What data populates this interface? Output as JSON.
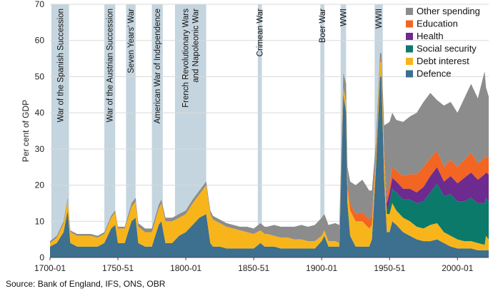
{
  "chart_data": {
    "type": "area",
    "stacked": true,
    "ylabel": "Per cent of GDP",
    "ylim": [
      0,
      70
    ],
    "yticks": [
      0,
      10,
      20,
      30,
      40,
      50,
      60,
      70
    ],
    "xlim": [
      1700,
      2023
    ],
    "xticks": [
      {
        "year": 1700,
        "label": "1700-01"
      },
      {
        "year": 1750,
        "label": "1750-51"
      },
      {
        "year": 1800,
        "label": "1800-01"
      },
      {
        "year": 1850,
        "label": "1850-51"
      },
      {
        "year": 1900,
        "label": "1900-01"
      },
      {
        "year": 1950,
        "label": "1950-51"
      },
      {
        "year": 2000,
        "label": "2000-01"
      }
    ],
    "grid": "horizontal",
    "legend_position": "top-right",
    "source": "Source: Bank of England, IFS, ONS, OBR",
    "wars": [
      {
        "label": "War of the Spanish Succession",
        "start": 1701,
        "end": 1714
      },
      {
        "label": "War of the Austrian Succession",
        "start": 1740,
        "end": 1748
      },
      {
        "label": "Seven Years' War",
        "start": 1756,
        "end": 1763
      },
      {
        "label": "American War of Independence",
        "start": 1775,
        "end": 1783
      },
      {
        "label": "French Revolutionary Wars",
        "label2": "and Napoleonic War",
        "start": 1792,
        "end": 1815
      },
      {
        "label": "Crimean War",
        "start": 1853,
        "end": 1856
      },
      {
        "label": "Boer War",
        "start": 1899,
        "end": 1902
      },
      {
        "label": "WWI",
        "start": 1914,
        "end": 1918
      },
      {
        "label": "WWII",
        "start": 1939,
        "end": 1945
      }
    ],
    "years": [
      1700,
      1705,
      1710,
      1713,
      1715,
      1720,
      1725,
      1730,
      1735,
      1740,
      1745,
      1748,
      1750,
      1755,
      1760,
      1763,
      1765,
      1770,
      1775,
      1780,
      1782,
      1785,
      1790,
      1795,
      1800,
      1805,
      1810,
      1815,
      1818,
      1820,
      1825,
      1830,
      1835,
      1840,
      1845,
      1850,
      1855,
      1858,
      1860,
      1865,
      1870,
      1875,
      1880,
      1885,
      1890,
      1895,
      1900,
      1902,
      1905,
      1910,
      1913,
      1916,
      1918,
      1919,
      1921,
      1925,
      1930,
      1935,
      1937,
      1940,
      1943,
      1944,
      1946,
      1948,
      1950,
      1952,
      1955,
      1960,
      1965,
      1970,
      1975,
      1980,
      1985,
      1990,
      1995,
      2000,
      2005,
      2010,
      2015,
      2020,
      2021,
      2023
    ],
    "series": [
      {
        "name": "Defence",
        "color": "#3d6f8e",
        "values": [
          3,
          4,
          7,
          13,
          4,
          3,
          3,
          3,
          3,
          4,
          8,
          9,
          4,
          4,
          10,
          11,
          4,
          3,
          3,
          9,
          10,
          4,
          4,
          6,
          7,
          9,
          11,
          12,
          4,
          3,
          3,
          2.5,
          2.5,
          2.5,
          2.5,
          2.5,
          4,
          3,
          3,
          3,
          2.5,
          2.5,
          2.5,
          2.5,
          2.5,
          2.5,
          4.5,
          6,
          3,
          3,
          3,
          45,
          40,
          15,
          6,
          3,
          3,
          3,
          5,
          25,
          50,
          50,
          22,
          7,
          7,
          10,
          9,
          7,
          6,
          5,
          4.5,
          4.5,
          5,
          4,
          3,
          2.5,
          2.5,
          2.5,
          2,
          2,
          2,
          2
        ]
      },
      {
        "name": "Debt interest",
        "color": "#f7b51b",
        "values": [
          1,
          1.5,
          2.5,
          3,
          3,
          3,
          3,
          3,
          2.5,
          2.5,
          3,
          3.5,
          4,
          4,
          4,
          4.5,
          4.5,
          4,
          4,
          4.5,
          5,
          6,
          6,
          5,
          5,
          6,
          6.5,
          8,
          8,
          7.5,
          6.5,
          6,
          5.5,
          5,
          4.5,
          4,
          3.5,
          3.5,
          3.5,
          3,
          3,
          3,
          2.5,
          2.5,
          2,
          2,
          1.5,
          1.5,
          1.5,
          1.5,
          1,
          2,
          3,
          4,
          7,
          7,
          7,
          5,
          4,
          3,
          4,
          4,
          5,
          5,
          5,
          5,
          4,
          4,
          4,
          3.5,
          3.5,
          4.5,
          4.5,
          3,
          3,
          2.5,
          2,
          2,
          2,
          1.5,
          4,
          3
        ]
      },
      {
        "name": "Social security",
        "color": "#0c7a6a",
        "values": [
          0,
          0,
          0,
          0,
          0,
          0,
          0,
          0,
          0,
          0,
          0,
          0,
          0,
          0,
          0,
          0,
          0,
          0,
          0,
          0,
          0,
          0,
          0,
          0,
          0,
          0,
          0,
          0,
          0,
          0,
          0,
          0,
          0,
          0,
          0,
          0,
          0,
          0,
          0,
          0,
          0,
          0,
          0,
          0,
          0,
          0,
          0,
          0,
          0,
          0,
          0,
          0,
          0,
          0,
          0,
          0,
          0,
          0,
          0,
          0,
          0,
          0,
          0,
          1,
          3,
          4,
          5,
          5,
          6,
          6.5,
          7.5,
          9,
          11,
          10,
          11.5,
          10.5,
          11,
          12,
          11,
          11.5,
          10.5,
          10.5
        ]
      },
      {
        "name": "Health",
        "color": "#6d2a8f",
        "values": [
          0,
          0,
          0,
          0,
          0,
          0,
          0,
          0,
          0,
          0,
          0,
          0,
          0,
          0,
          0,
          0,
          0,
          0,
          0,
          0,
          0,
          0,
          0,
          0,
          0,
          0,
          0,
          0,
          0,
          0,
          0,
          0,
          0,
          0,
          0,
          0,
          0,
          0,
          0,
          0,
          0,
          0,
          0,
          0,
          0,
          0,
          0,
          0,
          0,
          0,
          0,
          0,
          0,
          0,
          0,
          0,
          0,
          0,
          0,
          0,
          0,
          0,
          0,
          2,
          3,
          3,
          3,
          3,
          3,
          3,
          4,
          4.5,
          4.5,
          4,
          5,
          5,
          6.5,
          7,
          6.5,
          8,
          7,
          7.5
        ]
      },
      {
        "name": "Education",
        "color": "#f26522",
        "values": [
          0,
          0,
          0,
          0,
          0,
          0,
          0,
          0,
          0,
          0,
          0,
          0,
          0,
          0,
          0,
          0,
          0,
          0,
          0,
          0,
          0,
          0,
          0,
          0,
          0,
          0,
          0,
          0,
          0,
          0,
          0,
          0,
          0,
          0,
          0,
          0,
          0,
          0,
          0,
          0,
          0,
          0,
          0,
          0,
          0,
          0,
          0,
          0,
          0,
          0,
          0,
          0,
          0,
          2,
          2,
          2,
          2.5,
          2.5,
          2.5,
          1,
          0.5,
          0.5,
          1.5,
          2,
          2.5,
          3,
          3,
          3.5,
          4,
          5,
          5.5,
          5,
          4.5,
          4,
          4.5,
          4.5,
          5,
          5.5,
          4.5,
          4.5,
          4.5,
          4.5
        ]
      },
      {
        "name": "Other spending",
        "color": "#8c8c8c",
        "values": [
          0.5,
          0.5,
          0.5,
          0.5,
          0.5,
          0.5,
          0.5,
          0.5,
          0.5,
          0.5,
          0.5,
          0.5,
          0.5,
          0.5,
          1,
          1,
          1,
          1,
          1,
          1,
          1,
          1,
          1,
          1,
          1,
          1,
          1,
          1,
          1,
          1,
          1,
          1,
          1,
          1,
          1.5,
          1.5,
          2,
          2,
          2,
          3,
          3,
          3,
          3.5,
          4,
          4,
          4.5,
          5,
          4.5,
          4.5,
          5,
          5,
          4,
          5,
          4,
          6,
          8,
          9,
          8,
          7,
          3,
          2,
          2,
          8,
          20,
          17,
          15,
          14,
          15,
          16,
          17,
          18,
          18,
          14,
          17,
          16,
          15,
          17,
          19,
          18,
          24,
          19,
          17
        ]
      }
    ]
  }
}
